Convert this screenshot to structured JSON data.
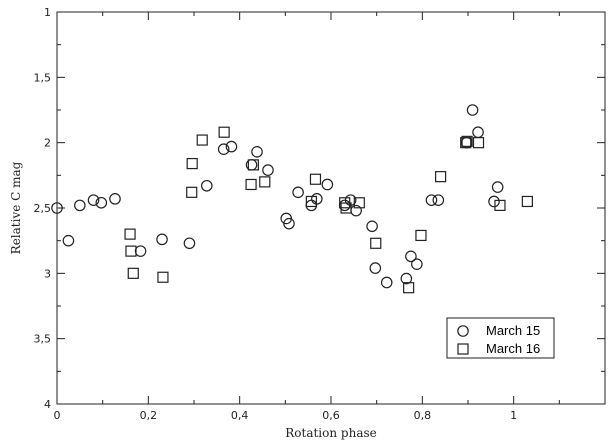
{
  "chart_data": {
    "type": "scatter",
    "xlabel": "Rotation phase",
    "ylabel": "Relative C mag",
    "xlim": [
      0,
      1.2
    ],
    "ylim": [
      1,
      4
    ],
    "y_inverted": true,
    "grid": false,
    "legend_position": "bottom-right",
    "x_ticks": [
      "0",
      "0,2",
      "0,4",
      "0,6",
      "0,8",
      "1"
    ],
    "y_ticks": [
      "1",
      "1,5",
      "2",
      "2,5",
      "3",
      "3,5",
      "4"
    ],
    "series": [
      {
        "name": "March 15",
        "marker": "circle",
        "points": [
          [
            0.0,
            2.5
          ],
          [
            0.025,
            2.75
          ],
          [
            0.05,
            2.48
          ],
          [
            0.08,
            2.44
          ],
          [
            0.097,
            2.46
          ],
          [
            0.127,
            2.43
          ],
          [
            0.183,
            2.83
          ],
          [
            0.23,
            2.74
          ],
          [
            0.29,
            2.77
          ],
          [
            0.328,
            2.33
          ],
          [
            0.365,
            2.05
          ],
          [
            0.382,
            2.03
          ],
          [
            0.426,
            2.17
          ],
          [
            0.438,
            2.07
          ],
          [
            0.462,
            2.21
          ],
          [
            0.502,
            2.58
          ],
          [
            0.508,
            2.62
          ],
          [
            0.528,
            2.38
          ],
          [
            0.557,
            2.48
          ],
          [
            0.569,
            2.43
          ],
          [
            0.592,
            2.32
          ],
          [
            0.63,
            2.48
          ],
          [
            0.643,
            2.44
          ],
          [
            0.655,
            2.52
          ],
          [
            0.69,
            2.64
          ],
          [
            0.697,
            2.96
          ],
          [
            0.722,
            3.07
          ],
          [
            0.765,
            3.04
          ],
          [
            0.775,
            2.87
          ],
          [
            0.788,
            2.93
          ],
          [
            0.82,
            2.44
          ],
          [
            0.835,
            2.44
          ],
          [
            0.897,
            2.0
          ],
          [
            0.91,
            1.75
          ],
          [
            0.922,
            1.92
          ],
          [
            0.957,
            2.45
          ],
          [
            0.965,
            2.34
          ]
        ]
      },
      {
        "name": "March 16",
        "marker": "square",
        "points": [
          [
            0.16,
            2.7
          ],
          [
            0.162,
            2.83
          ],
          [
            0.167,
            3.0
          ],
          [
            0.232,
            3.03
          ],
          [
            0.295,
            2.38
          ],
          [
            0.296,
            2.16
          ],
          [
            0.318,
            1.98
          ],
          [
            0.366,
            1.92
          ],
          [
            0.425,
            2.32
          ],
          [
            0.43,
            2.17
          ],
          [
            0.455,
            2.3
          ],
          [
            0.557,
            2.45
          ],
          [
            0.566,
            2.28
          ],
          [
            0.63,
            2.46
          ],
          [
            0.633,
            2.5
          ],
          [
            0.662,
            2.46
          ],
          [
            0.698,
            2.77
          ],
          [
            0.77,
            3.11
          ],
          [
            0.797,
            2.71
          ],
          [
            0.84,
            2.26
          ],
          [
            0.895,
            2.0
          ],
          [
            0.898,
            1.99
          ],
          [
            0.923,
            2.0
          ],
          [
            0.97,
            2.48
          ],
          [
            1.03,
            2.45
          ]
        ]
      }
    ]
  }
}
